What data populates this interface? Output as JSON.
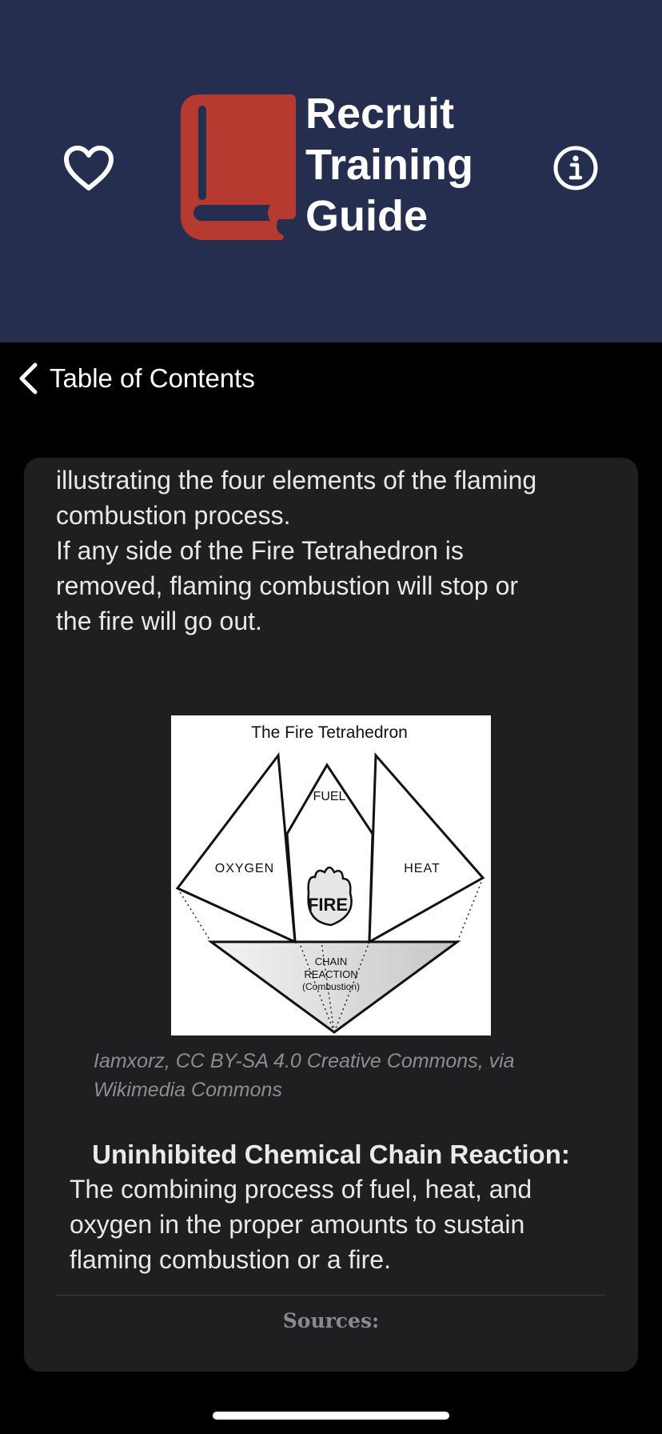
{
  "header": {
    "title_lines": [
      "Recruit",
      "Training",
      "Guide"
    ],
    "favorite_icon": "heart-outline-icon",
    "info_icon": "info-circle-icon",
    "logo_icon": "book-icon",
    "colors": {
      "header_bg": "#252e4e",
      "logo_red": "#b63a30"
    }
  },
  "nav": {
    "back_icon": "chevron-left-icon",
    "back_label": "Table of Contents"
  },
  "content": {
    "para1_lines": [
      "illustrating the four elements of the flaming",
      "combustion process."
    ],
    "para2_lines": [
      "If any side of the Fire Tetrahedron is",
      "removed, flaming combustion will stop or",
      "the fire will go out."
    ],
    "figure": {
      "title": "The Fire Tetrahedron",
      "fuel": "FUEL",
      "oxygen": "OXYGEN",
      "heat": "HEAT",
      "fire": "FIRE",
      "chain_lines": [
        "CHAIN",
        "REACTION",
        "(Combustion)"
      ]
    },
    "caption_lines": [
      "Iamxorz, CC BY-SA 4.0 Creative Commons, via",
      "Wikimedia Commons"
    ],
    "term_title": "Uninhibited Chemical Chain Reaction:",
    "term_def_lines": [
      "The combining process of fuel, heat, and",
      "oxygen in the proper amounts to sustain",
      "flaming combustion or a fire."
    ],
    "sources_label": "Sources:"
  }
}
